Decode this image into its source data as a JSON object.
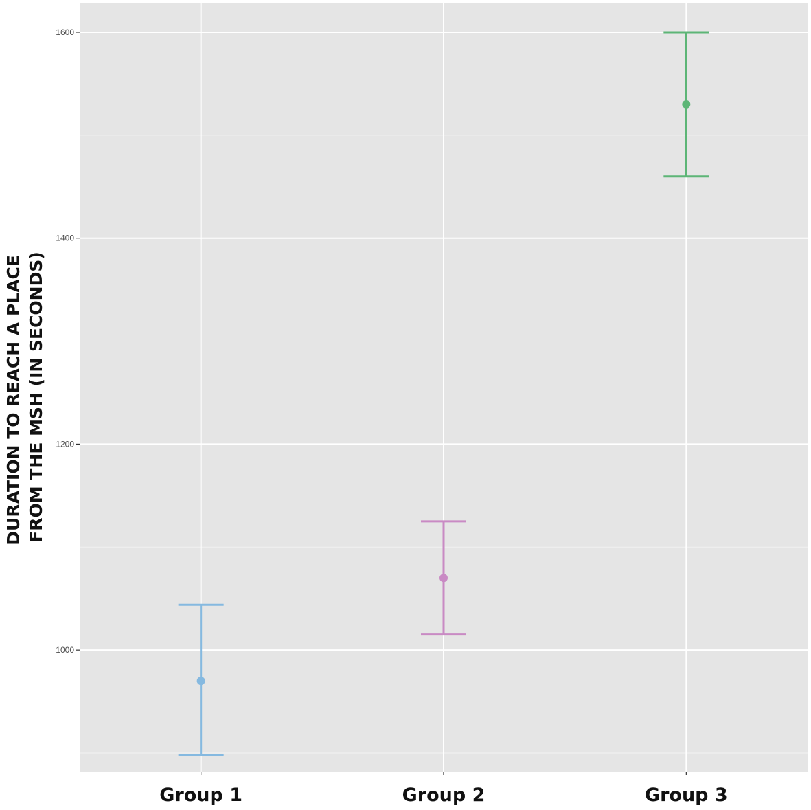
{
  "chart_data": {
    "type": "errorbar",
    "ylabel": [
      "DURATION TO REACH A PLACE",
      "FROM THE MSH (IN SECONDS)"
    ],
    "xlabel": "",
    "categories": [
      "Group 1",
      "Group 2",
      "Group 3"
    ],
    "mean": [
      970,
      1070,
      1530
    ],
    "lower": [
      898,
      1015,
      1460
    ],
    "upper": [
      1044,
      1125,
      1600
    ],
    "colors": [
      "#85b9e0",
      "#c98ac4",
      "#5db576"
    ],
    "ylim": [
      882,
      1628
    ],
    "yticks": [
      1000,
      1200,
      1400,
      1600
    ],
    "yticks_minor": [
      900,
      1100,
      1300,
      1500
    ],
    "grid": true,
    "panel_background": "#e5e5e5"
  }
}
